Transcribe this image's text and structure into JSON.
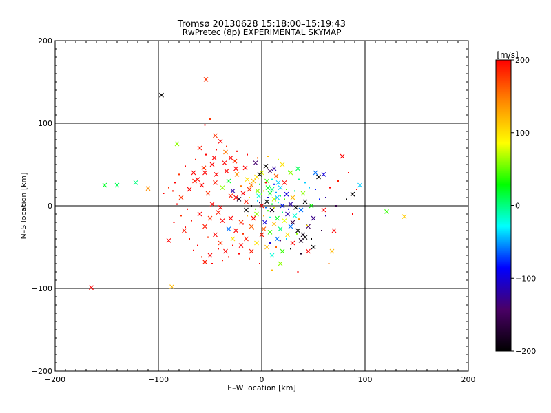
{
  "chart_data": {
    "type": "scatter",
    "title": "Tromsø 20130628 15:18:00–15:19:43",
    "subtitle": "RwPretec (8p) EXPERIMENTAL SKYMAP",
    "xlabel": "E–W location [km]",
    "ylabel": "N–S location [km]",
    "xlim": [
      -200,
      200
    ],
    "ylim": [
      -200,
      200
    ],
    "xticks": [
      -200,
      -100,
      0,
      100,
      200
    ],
    "yticks": [
      -200,
      -100,
      0,
      100,
      200
    ],
    "xtick_labels": [
      "−200",
      "−100",
      "0",
      "100",
      "200"
    ],
    "ytick_labels": [
      "−200",
      "−100",
      "0",
      "100",
      "200"
    ],
    "grid": true,
    "colorbar": {
      "label": "[m/s]",
      "range": [
        -200,
        200
      ],
      "ticks": [
        200,
        100,
        0,
        -100,
        -200
      ],
      "tick_labels": [
        "200",
        "100",
        "0",
        "−100",
        "−200"
      ],
      "colors": [
        "#000000",
        "#4a0066",
        "#0000ff",
        "#00ffff",
        "#00ff00",
        "#ffff00",
        "#ff8800",
        "#ff0000"
      ]
    },
    "points": [
      [
        -54,
        153,
        180,
        "x"
      ],
      [
        -97,
        134,
        -200,
        "x"
      ],
      [
        -165,
        -99,
        200,
        "x"
      ],
      [
        -87,
        -98,
        120,
        "x"
      ],
      [
        -152,
        25,
        20,
        "x"
      ],
      [
        -140,
        25,
        10,
        "x"
      ],
      [
        -122,
        28,
        0,
        "x"
      ],
      [
        -110,
        21,
        140,
        "x"
      ],
      [
        -82,
        75,
        60,
        "x"
      ],
      [
        121,
        -7,
        40,
        "x"
      ],
      [
        138,
        -13,
        110,
        "x"
      ],
      [
        95,
        25,
        -40,
        "x"
      ],
      [
        88,
        14,
        -200,
        "x"
      ],
      [
        78,
        60,
        200,
        "x"
      ],
      [
        -50,
        105,
        180,
        "."
      ],
      [
        -55,
        98,
        200,
        "."
      ],
      [
        -45,
        85,
        180,
        "x"
      ],
      [
        -40,
        78,
        200,
        "x"
      ],
      [
        -60,
        70,
        190,
        "x"
      ],
      [
        -35,
        65,
        150,
        "x"
      ],
      [
        -30,
        58,
        200,
        "x"
      ],
      [
        -25,
        45,
        200,
        "x"
      ],
      [
        -48,
        50,
        210,
        "x"
      ],
      [
        -55,
        40,
        200,
        "x"
      ],
      [
        -65,
        30,
        190,
        "x"
      ],
      [
        -70,
        20,
        200,
        "x"
      ],
      [
        -78,
        10,
        180,
        "x"
      ],
      [
        -60,
        -10,
        200,
        "x"
      ],
      [
        -55,
        -25,
        190,
        "x"
      ],
      [
        -45,
        -35,
        200,
        "x"
      ],
      [
        -40,
        -45,
        180,
        "x"
      ],
      [
        -35,
        -55,
        200,
        "x"
      ],
      [
        -50,
        -60,
        200,
        "x"
      ],
      [
        -55,
        -68,
        190,
        "x"
      ],
      [
        -90,
        -42,
        200,
        "x"
      ],
      [
        -75,
        -30,
        190,
        "x"
      ],
      [
        -85,
        -20,
        200,
        "."
      ],
      [
        -95,
        15,
        200,
        "."
      ],
      [
        -90,
        22,
        180,
        "."
      ],
      [
        -30,
        -15,
        200,
        "x"
      ],
      [
        -20,
        -20,
        180,
        "x"
      ],
      [
        -25,
        10,
        200,
        "x"
      ],
      [
        -15,
        5,
        190,
        "x"
      ],
      [
        -10,
        25,
        150,
        "x"
      ],
      [
        -5,
        35,
        100,
        "x"
      ],
      [
        0,
        40,
        80,
        "x"
      ],
      [
        5,
        30,
        40,
        "x"
      ],
      [
        10,
        20,
        0,
        "x"
      ],
      [
        15,
        10,
        -40,
        "x"
      ],
      [
        20,
        0,
        -80,
        "x"
      ],
      [
        25,
        -10,
        -120,
        "x"
      ],
      [
        30,
        -20,
        -160,
        "x"
      ],
      [
        35,
        -30,
        -200,
        "x"
      ],
      [
        40,
        -35,
        -190,
        "x"
      ],
      [
        42,
        -38,
        -200,
        "x"
      ],
      [
        38,
        -42,
        -180,
        "x"
      ],
      [
        45,
        -25,
        -150,
        "x"
      ],
      [
        50,
        -15,
        -130,
        "x"
      ],
      [
        55,
        35,
        -200,
        "x"
      ],
      [
        60,
        38,
        -100,
        "x"
      ],
      [
        52,
        40,
        -60,
        "x"
      ],
      [
        35,
        45,
        10,
        "x"
      ],
      [
        28,
        40,
        60,
        "x"
      ],
      [
        20,
        50,
        100,
        "x"
      ],
      [
        12,
        45,
        -120,
        "x"
      ],
      [
        8,
        42,
        -150,
        "x"
      ],
      [
        -2,
        38,
        -200,
        "x"
      ],
      [
        -8,
        30,
        120,
        "x"
      ],
      [
        -12,
        20,
        180,
        "x"
      ],
      [
        -18,
        15,
        200,
        "x"
      ],
      [
        0,
        0,
        200,
        "x"
      ],
      [
        5,
        5,
        -200,
        "x"
      ],
      [
        10,
        -5,
        -180,
        "x"
      ],
      [
        15,
        -15,
        20,
        "x"
      ],
      [
        -5,
        -10,
        60,
        "x"
      ],
      [
        -10,
        -25,
        160,
        "x"
      ],
      [
        0,
        -35,
        190,
        "x"
      ],
      [
        5,
        -50,
        120,
        "x"
      ],
      [
        10,
        -60,
        -20,
        "x"
      ],
      [
        20,
        -55,
        40,
        "x"
      ],
      [
        30,
        -45,
        200,
        "x"
      ],
      [
        25,
        -35,
        100,
        "x"
      ],
      [
        15,
        -40,
        -60,
        "x"
      ],
      [
        3,
        -20,
        -100,
        "x"
      ],
      [
        -3,
        12,
        -20,
        "x"
      ],
      [
        8,
        15,
        20,
        "x"
      ],
      [
        12,
        8,
        70,
        "x"
      ],
      [
        18,
        22,
        -40,
        "x"
      ],
      [
        22,
        28,
        200,
        "x"
      ],
      [
        30,
        10,
        120,
        "x"
      ],
      [
        40,
        15,
        60,
        "x"
      ],
      [
        48,
        0,
        30,
        "x"
      ],
      [
        60,
        -5,
        200,
        "x"
      ],
      [
        70,
        -30,
        200,
        "x"
      ],
      [
        68,
        -55,
        120,
        "x"
      ],
      [
        65,
        -70,
        150,
        "."
      ],
      [
        45,
        -55,
        200,
        "x"
      ],
      [
        50,
        -50,
        -200,
        "x"
      ],
      [
        18,
        -70,
        60,
        "x"
      ],
      [
        10,
        -78,
        120,
        "."
      ],
      [
        35,
        -80,
        200,
        "."
      ],
      [
        -10,
        -55,
        190,
        "x"
      ],
      [
        -20,
        -48,
        200,
        "x"
      ],
      [
        -28,
        -40,
        100,
        "x"
      ],
      [
        -32,
        -28,
        -60,
        "x"
      ],
      [
        -38,
        -18,
        200,
        "x"
      ],
      [
        -42,
        -8,
        190,
        "x"
      ],
      [
        -48,
        2,
        200,
        "x"
      ],
      [
        -52,
        15,
        180,
        "x"
      ],
      [
        -58,
        25,
        200,
        "x"
      ],
      [
        -62,
        32,
        200,
        "x"
      ],
      [
        -45,
        28,
        190,
        "x"
      ],
      [
        -38,
        22,
        60,
        "x"
      ],
      [
        -32,
        30,
        20,
        "x"
      ],
      [
        -28,
        18,
        -120,
        "x"
      ],
      [
        -22,
        8,
        -180,
        "x"
      ],
      [
        -15,
        -5,
        -200,
        "x"
      ],
      [
        -8,
        -15,
        200,
        "x"
      ],
      [
        2,
        -28,
        160,
        "x"
      ],
      [
        12,
        -22,
        120,
        "x"
      ],
      [
        22,
        -18,
        80,
        "x"
      ],
      [
        32,
        -12,
        -20,
        "x"
      ],
      [
        38,
        -5,
        -60,
        "x"
      ],
      [
        42,
        5,
        -200,
        "x"
      ],
      [
        28,
        2,
        -120,
        "x"
      ],
      [
        16,
        28,
        -40,
        "x"
      ],
      [
        6,
        22,
        20,
        "x"
      ],
      [
        -4,
        18,
        60,
        "x"
      ],
      [
        -14,
        32,
        100,
        "x"
      ],
      [
        -24,
        38,
        140,
        "x"
      ],
      [
        -34,
        42,
        200,
        "x"
      ],
      [
        -44,
        38,
        200,
        "x"
      ],
      [
        -30,
        12,
        190,
        "x"
      ],
      [
        -40,
        -2,
        200,
        "x"
      ],
      [
        -50,
        -15,
        180,
        "x"
      ],
      [
        -25,
        -30,
        200,
        "x"
      ],
      [
        -15,
        -40,
        190,
        "x"
      ],
      [
        -5,
        -45,
        100,
        "x"
      ],
      [
        8,
        -32,
        40,
        "x"
      ],
      [
        18,
        -28,
        0,
        "x"
      ],
      [
        28,
        -25,
        -60,
        "x"
      ],
      [
        33,
        -2,
        -200,
        "x"
      ],
      [
        24,
        14,
        -100,
        "x"
      ],
      [
        14,
        36,
        160,
        "x"
      ],
      [
        4,
        48,
        -200,
        "x"
      ],
      [
        -6,
        52,
        -140,
        "x"
      ],
      [
        -16,
        46,
        200,
        "x"
      ],
      [
        -26,
        54,
        180,
        "x"
      ],
      [
        -36,
        52,
        200,
        "x"
      ],
      [
        -46,
        58,
        200,
        "x"
      ],
      [
        -56,
        46,
        180,
        "x"
      ],
      [
        -66,
        40,
        200,
        "x"
      ],
      [
        -72,
        -4,
        200,
        "."
      ],
      [
        -68,
        -18,
        190,
        "."
      ],
      [
        -62,
        -48,
        200,
        "."
      ],
      [
        -52,
        -38,
        180,
        "."
      ],
      [
        -42,
        -52,
        200,
        "."
      ],
      [
        -32,
        -62,
        190,
        "."
      ],
      [
        -22,
        -58,
        200,
        "."
      ],
      [
        -12,
        -64,
        180,
        "."
      ],
      [
        -2,
        -70,
        200,
        "."
      ],
      [
        8,
        -45,
        -100,
        "."
      ],
      [
        18,
        -42,
        -140,
        "."
      ],
      [
        28,
        -52,
        -200,
        "."
      ],
      [
        38,
        -58,
        -180,
        "."
      ],
      [
        48,
        -40,
        -200,
        "."
      ],
      [
        58,
        -30,
        -160,
        "."
      ],
      [
        62,
        -12,
        -120,
        "."
      ],
      [
        56,
        8,
        -80,
        "."
      ],
      [
        46,
        22,
        -40,
        "."
      ],
      [
        36,
        32,
        0,
        "."
      ],
      [
        26,
        42,
        40,
        "."
      ],
      [
        16,
        56,
        80,
        "."
      ],
      [
        6,
        60,
        120,
        "."
      ],
      [
        -4,
        58,
        160,
        "."
      ],
      [
        -14,
        62,
        200,
        "."
      ],
      [
        -24,
        66,
        200,
        "."
      ],
      [
        -34,
        72,
        180,
        "."
      ],
      [
        -44,
        68,
        200,
        "."
      ],
      [
        -54,
        62,
        200,
        "."
      ],
      [
        -64,
        56,
        190,
        "."
      ],
      [
        -74,
        48,
        200,
        "."
      ],
      [
        -80,
        38,
        180,
        "."
      ],
      [
        -84,
        28,
        200,
        "."
      ],
      [
        -86,
        18,
        190,
        "."
      ],
      [
        -82,
        2,
        200,
        "."
      ],
      [
        -78,
        -12,
        180,
        "."
      ],
      [
        -74,
        -26,
        200,
        "."
      ],
      [
        -70,
        -40,
        190,
        "."
      ],
      [
        -66,
        -54,
        200,
        "."
      ],
      [
        -58,
        -62,
        180,
        "."
      ],
      [
        -48,
        -70,
        200,
        "."
      ],
      [
        -38,
        -66,
        190,
        "."
      ],
      [
        -28,
        -48,
        200,
        "."
      ],
      [
        -18,
        -34,
        180,
        "."
      ],
      [
        -8,
        -28,
        160,
        "."
      ],
      [
        2,
        -12,
        120,
        "."
      ],
      [
        12,
        -2,
        80,
        "."
      ],
      [
        22,
        8,
        40,
        "."
      ],
      [
        32,
        18,
        0,
        "."
      ],
      [
        42,
        28,
        -40,
        "."
      ],
      [
        52,
        20,
        -80,
        "."
      ],
      [
        62,
        10,
        -120,
        "."
      ],
      [
        72,
        0,
        -160,
        "."
      ],
      [
        82,
        8,
        -200,
        "."
      ],
      [
        88,
        -10,
        200,
        "."
      ],
      [
        92,
        20,
        200,
        "."
      ],
      [
        84,
        40,
        200,
        "."
      ],
      [
        74,
        30,
        190,
        "."
      ],
      [
        66,
        22,
        200,
        "."
      ],
      [
        -10,
        0,
        -200,
        "."
      ],
      [
        -2,
        4,
        -150,
        "."
      ],
      [
        6,
        10,
        -100,
        "."
      ],
      [
        14,
        16,
        -50,
        "."
      ],
      [
        20,
        -8,
        0,
        "."
      ],
      [
        -6,
        -4,
        50,
        "."
      ],
      [
        -12,
        10,
        100,
        "."
      ],
      [
        -20,
        24,
        150,
        "."
      ],
      [
        4,
        28,
        200,
        "."
      ],
      [
        10,
        32,
        -20,
        "."
      ],
      [
        -2,
        26,
        20,
        "."
      ],
      [
        0,
        14,
        60,
        "."
      ],
      [
        4,
        -2,
        -60,
        "."
      ],
      [
        8,
        -14,
        -20,
        "."
      ],
      [
        -14,
        -12,
        120,
        "."
      ],
      [
        -18,
        -22,
        200,
        "."
      ],
      [
        10,
        2,
        20,
        "."
      ],
      [
        16,
        4,
        -20,
        "."
      ],
      [
        6,
        -6,
        40,
        "."
      ],
      [
        -4,
        6,
        -40,
        "."
      ],
      [
        2,
        18,
        80,
        "."
      ],
      [
        12,
        26,
        -80,
        "."
      ],
      [
        18,
        12,
        10,
        "."
      ],
      [
        24,
        20,
        50,
        "."
      ],
      [
        26,
        -4,
        -100,
        "."
      ],
      [
        36,
        -16,
        140,
        "."
      ],
      [
        44,
        -24,
        100,
        "."
      ],
      [
        34,
        -34,
        60,
        "."
      ],
      [
        24,
        -40,
        -40,
        "."
      ],
      [
        14,
        -50,
        160,
        "."
      ]
    ]
  }
}
